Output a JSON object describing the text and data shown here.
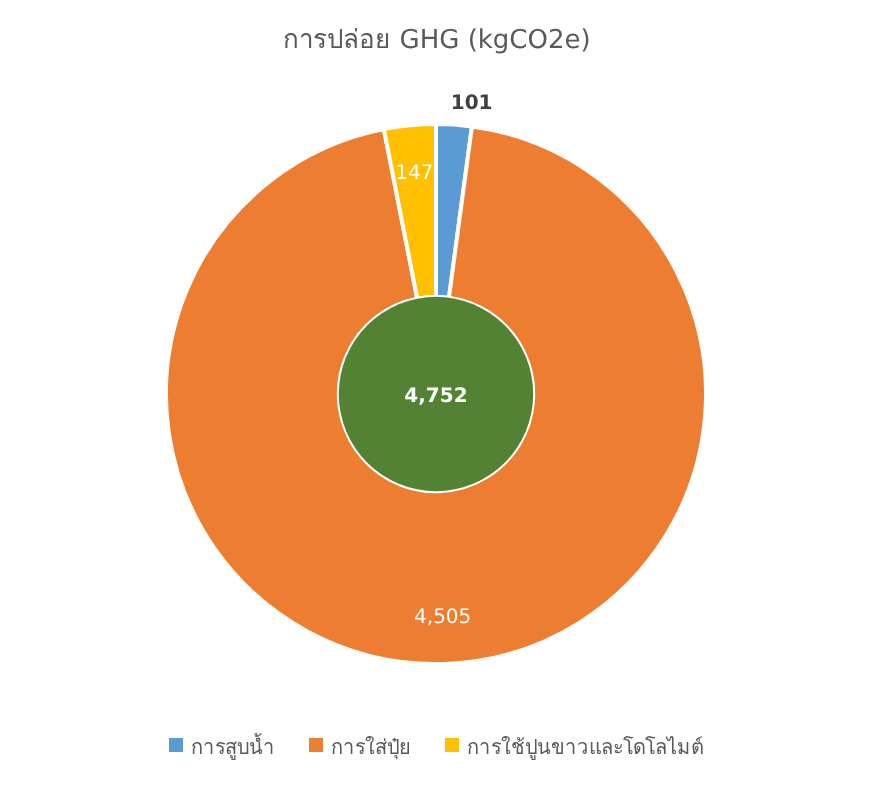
{
  "chart_data": {
    "type": "donut",
    "title": "การปล่อย GHG (kgCO2e)",
    "categories": [
      "การสูบน้ำ",
      "การใส่ปุ๋ย",
      "การใช้ปูนขาวและโดโลไมต์"
    ],
    "values": [
      101,
      4505,
      147
    ],
    "colors": [
      "#5b9bd5",
      "#ed7d31",
      "#ffc000"
    ],
    "value_labels": [
      "101",
      "4,505",
      "147"
    ],
    "annotations": [
      "4,752"
    ],
    "legend": "bottom"
  }
}
